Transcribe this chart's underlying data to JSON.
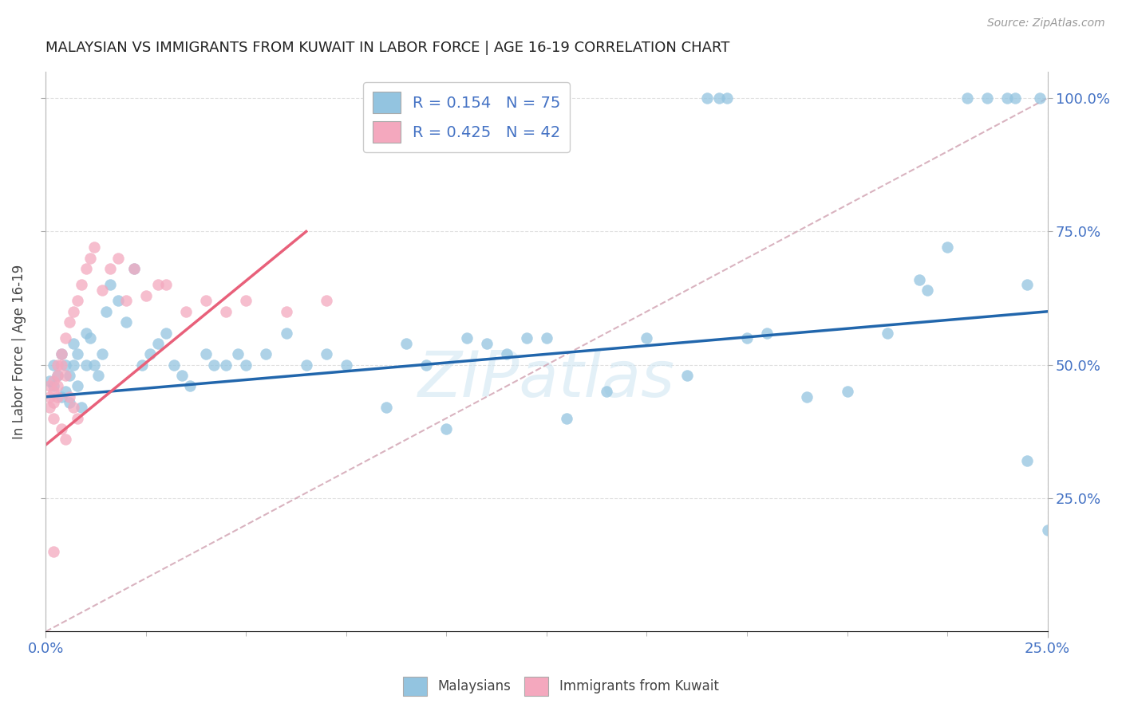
{
  "title": "MALAYSIAN VS IMMIGRANTS FROM KUWAIT IN LABOR FORCE | AGE 16-19 CORRELATION CHART",
  "source": "Source: ZipAtlas.com",
  "ylabel": "In Labor Force | Age 16-19",
  "xmin": 0.0,
  "xmax": 0.25,
  "ymin": 0.0,
  "ymax": 1.05,
  "blue_color": "#93c4e0",
  "pink_color": "#f4a8be",
  "trend_blue_color": "#2166ac",
  "trend_pink_color": "#e8607a",
  "ref_line_color": "#d0a0b0",
  "watermark": "ZIPatlas",
  "blue_scatter_x": [
    0.001,
    0.002,
    0.002,
    0.003,
    0.004,
    0.004,
    0.005,
    0.005,
    0.006,
    0.006,
    0.007,
    0.007,
    0.008,
    0.008,
    0.009,
    0.01,
    0.01,
    0.011,
    0.012,
    0.013,
    0.014,
    0.015,
    0.016,
    0.018,
    0.02,
    0.022,
    0.024,
    0.026,
    0.028,
    0.03,
    0.032,
    0.034,
    0.036,
    0.04,
    0.042,
    0.045,
    0.048,
    0.05,
    0.055,
    0.06,
    0.065,
    0.07,
    0.075,
    0.085,
    0.09,
    0.095,
    0.1,
    0.105,
    0.11,
    0.115,
    0.12,
    0.125,
    0.13,
    0.14,
    0.15,
    0.16,
    0.165,
    0.168,
    0.17,
    0.175,
    0.18,
    0.19,
    0.2,
    0.21,
    0.218,
    0.22,
    0.225,
    0.23,
    0.235,
    0.24,
    0.242,
    0.245,
    0.248,
    0.25,
    0.245
  ],
  "blue_scatter_y": [
    0.47,
    0.5,
    0.46,
    0.48,
    0.44,
    0.52,
    0.45,
    0.5,
    0.43,
    0.48,
    0.5,
    0.54,
    0.46,
    0.52,
    0.42,
    0.5,
    0.56,
    0.55,
    0.5,
    0.48,
    0.52,
    0.6,
    0.65,
    0.62,
    0.58,
    0.68,
    0.5,
    0.52,
    0.54,
    0.56,
    0.5,
    0.48,
    0.46,
    0.52,
    0.5,
    0.5,
    0.52,
    0.5,
    0.52,
    0.56,
    0.5,
    0.52,
    0.5,
    0.42,
    0.54,
    0.5,
    0.38,
    0.55,
    0.54,
    0.52,
    0.55,
    0.55,
    0.4,
    0.45,
    0.55,
    0.48,
    1.0,
    1.0,
    1.0,
    0.55,
    0.56,
    0.44,
    0.45,
    0.56,
    0.66,
    0.64,
    0.72,
    1.0,
    1.0,
    1.0,
    1.0,
    0.32,
    1.0,
    0.19,
    0.65
  ],
  "pink_scatter_x": [
    0.001,
    0.001,
    0.001,
    0.002,
    0.002,
    0.002,
    0.002,
    0.003,
    0.003,
    0.003,
    0.003,
    0.004,
    0.004,
    0.004,
    0.005,
    0.005,
    0.005,
    0.006,
    0.006,
    0.007,
    0.007,
    0.008,
    0.008,
    0.009,
    0.01,
    0.011,
    0.012,
    0.014,
    0.016,
    0.018,
    0.02,
    0.022,
    0.025,
    0.028,
    0.03,
    0.035,
    0.04,
    0.045,
    0.05,
    0.06,
    0.07,
    0.002
  ],
  "pink_scatter_y": [
    0.46,
    0.44,
    0.42,
    0.47,
    0.45,
    0.43,
    0.4,
    0.5,
    0.48,
    0.46,
    0.44,
    0.52,
    0.5,
    0.38,
    0.55,
    0.48,
    0.36,
    0.58,
    0.44,
    0.6,
    0.42,
    0.62,
    0.4,
    0.65,
    0.68,
    0.7,
    0.72,
    0.64,
    0.68,
    0.7,
    0.62,
    0.68,
    0.63,
    0.65,
    0.65,
    0.6,
    0.62,
    0.6,
    0.62,
    0.6,
    0.62,
    0.15
  ],
  "blue_trend_x0": 0.0,
  "blue_trend_y0": 0.44,
  "blue_trend_x1": 0.25,
  "blue_trend_y1": 0.6,
  "pink_trend_x0": 0.0,
  "pink_trend_y0": 0.35,
  "pink_trend_x1": 0.065,
  "pink_trend_y1": 0.75,
  "ref_line_x0": 0.0,
  "ref_line_y0": 0.0,
  "ref_line_x1": 0.25,
  "ref_line_y1": 1.0,
  "background_color": "#ffffff",
  "grid_color": "#dddddd"
}
